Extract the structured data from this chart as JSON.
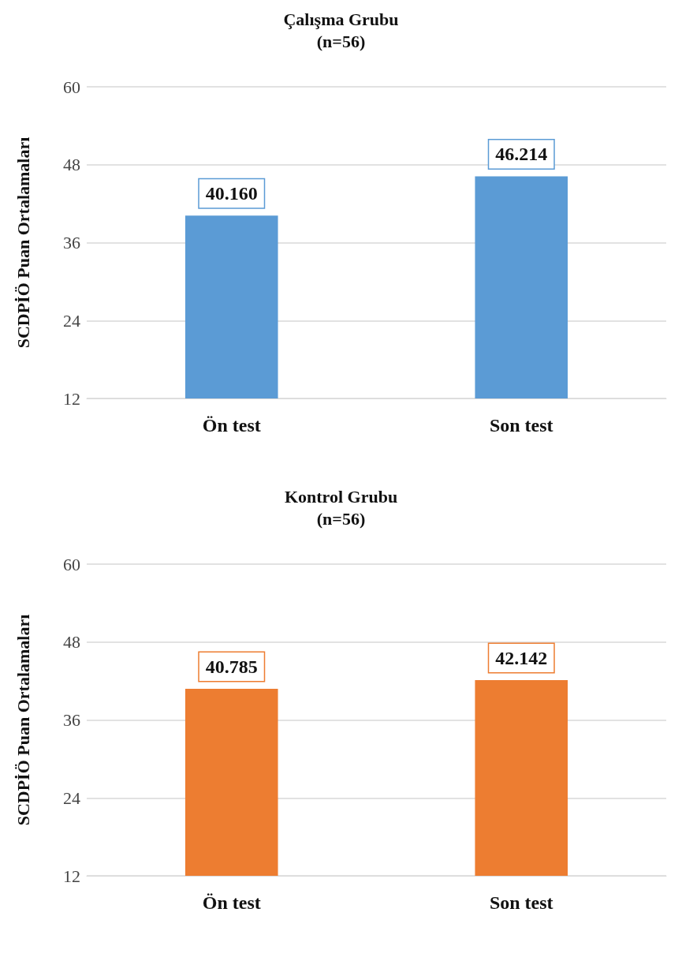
{
  "chart_data": [
    {
      "type": "bar",
      "title": "Çalışma Grubu",
      "subtitle": "(n=56)",
      "ylabel": "SCDPİÖ Puan Ortalamaları",
      "categories": [
        "Ön test",
        "Son test"
      ],
      "values": [
        40.16,
        46.214
      ],
      "value_labels": [
        "40.160",
        "46.214"
      ],
      "color": "#5b9bd5",
      "ylim": [
        12,
        60
      ],
      "yticks": [
        12,
        24,
        36,
        48,
        60
      ],
      "grid": "y"
    },
    {
      "type": "bar",
      "title": "Kontrol Grubu",
      "subtitle": "(n=56)",
      "ylabel": "SCDPİÖ Puan Ortalamaları",
      "categories": [
        "Ön test",
        "Son test"
      ],
      "values": [
        40.785,
        42.142
      ],
      "value_labels": [
        "40.785",
        "42.142"
      ],
      "color": "#ed7d31",
      "ylim": [
        12,
        60
      ],
      "yticks": [
        12,
        24,
        36,
        48,
        60
      ],
      "grid": "y"
    }
  ]
}
